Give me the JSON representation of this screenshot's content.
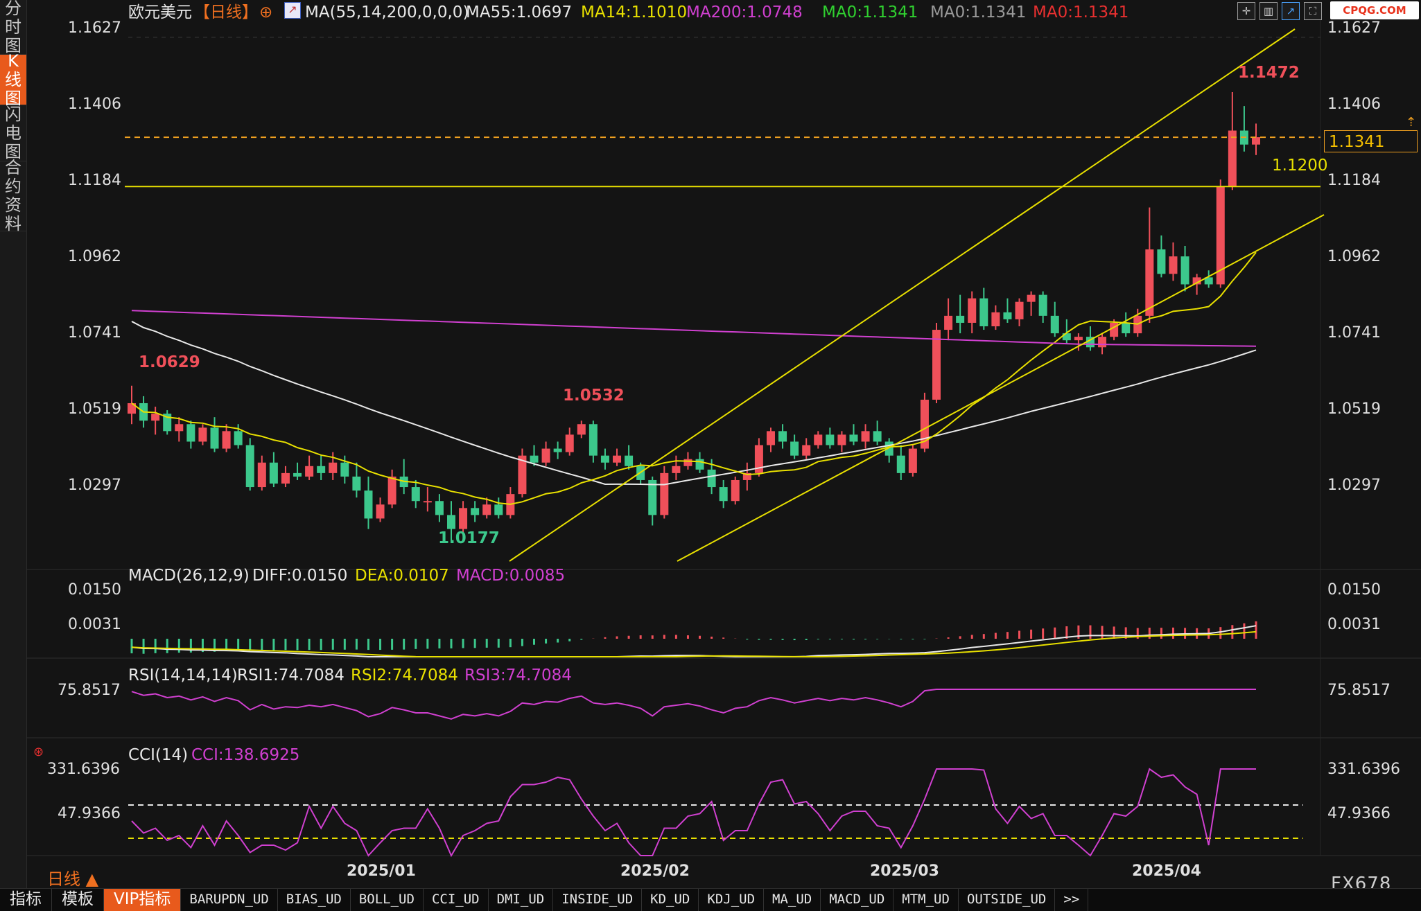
{
  "sidebar": [
    {
      "label": "分时图",
      "active": false
    },
    {
      "label": "K线图",
      "active": true
    },
    {
      "label": "闪电图",
      "active": false
    },
    {
      "label": "合约资料",
      "active": false
    }
  ],
  "header": {
    "symbol": "欧元美元",
    "period_tag": "【日线】",
    "ma_params": "MA(55,14,200,0,0,0)",
    "ma55": "MA55:1.0697",
    "ma14": "MA14:1.1010",
    "ma200": "MA200:1.0748",
    "ma0_a": "MA0:1.1341",
    "ma0_b": "MA0:1.1341",
    "ma0_c": "MA0:1.1341"
  },
  "toolbar_icons": [
    "crosshair-icon",
    "bars-icon",
    "chart-type-icon",
    "fullscreen-icon"
  ],
  "logo": "CPQG.COM",
  "price_flag": "1.1341",
  "level_label": "1.1200",
  "annotations": {
    "high": "1.1472",
    "left_high": "1.0629",
    "low": "1.0177",
    "mid_high": "1.0532"
  },
  "macd": {
    "params": "MACD(26,12,9)",
    "diff": "DIFF:0.0150",
    "dea": "DEA:0.0107",
    "macd": "MACD:0.0085"
  },
  "rsi": {
    "params": "RSI(14,14,14)",
    "rsi1": "RSI1:74.7084",
    "rsi2": "RSI2:74.7084",
    "rsi3": "RSI3:74.7084"
  },
  "cci": {
    "params": "CCI(14)",
    "cci": "CCI:138.6925"
  },
  "bottom_tabs": [
    "指标",
    "模板",
    "VIP指标",
    "BARUPDN_UD",
    "BIAS_UD",
    "BOLL_UD",
    "CCI_UD",
    "DMI_UD",
    "INSIDE_UD",
    "KD_UD",
    "KDJ_UD",
    "MA_UD",
    "MACD_UD",
    "MTM_UD",
    "OUTSIDE_UD",
    ">>"
  ],
  "active_bottom_tab": "VIP指标",
  "period_button": "日线 ▲",
  "watermark": "FX678",
  "colors": {
    "up": "#f0505a",
    "down": "#3cc88c",
    "ma14": "#e8e000",
    "ma55": "#e8e8e8",
    "ma200": "#d040d0",
    "accent": "#e85a1c"
  },
  "chart_data": {
    "type": "candlestick",
    "price_axis": {
      "ticks": [
        "1.1627",
        "1.1406",
        "1.1184",
        "1.0962",
        "1.0741",
        "1.0519",
        "1.0297"
      ],
      "range": [
        1.0128,
        1.1694
      ]
    },
    "macd_axis": {
      "ticks": [
        "0.0150",
        "0.0031"
      ]
    },
    "rsi_axis": {
      "ticks": [
        "75.8517"
      ]
    },
    "cci_axis": {
      "ticks": [
        "331.6396",
        "47.9366"
      ]
    },
    "x_labels": [
      "2025/01",
      "2025/02",
      "2025/03",
      "2025/04"
    ],
    "horizontal_line": 1.12,
    "current_price": 1.1341,
    "ohlc": [
      [
        1.055,
        1.063,
        1.052,
        1.058
      ],
      [
        1.058,
        1.06,
        1.051,
        1.053
      ],
      [
        1.053,
        1.057,
        1.049,
        1.055
      ],
      [
        1.055,
        1.056,
        1.049,
        1.05
      ],
      [
        1.05,
        1.054,
        1.047,
        1.052
      ],
      [
        1.052,
        1.053,
        1.045,
        1.047
      ],
      [
        1.047,
        1.052,
        1.046,
        1.051
      ],
      [
        1.051,
        1.054,
        1.044,
        1.045
      ],
      [
        1.045,
        1.052,
        1.044,
        1.05
      ],
      [
        1.05,
        1.052,
        1.045,
        1.046
      ],
      [
        1.046,
        1.048,
        1.033,
        1.034
      ],
      [
        1.034,
        1.043,
        1.033,
        1.041
      ],
      [
        1.041,
        1.044,
        1.034,
        1.035
      ],
      [
        1.035,
        1.04,
        1.034,
        1.038
      ],
      [
        1.038,
        1.041,
        1.036,
        1.037
      ],
      [
        1.037,
        1.043,
        1.036,
        1.04
      ],
      [
        1.04,
        1.043,
        1.036,
        1.038
      ],
      [
        1.038,
        1.044,
        1.036,
        1.041
      ],
      [
        1.041,
        1.043,
        1.035,
        1.037
      ],
      [
        1.037,
        1.041,
        1.031,
        1.033
      ],
      [
        1.033,
        1.037,
        1.022,
        1.025
      ],
      [
        1.025,
        1.031,
        1.024,
        1.029
      ],
      [
        1.029,
        1.039,
        1.028,
        1.037
      ],
      [
        1.037,
        1.042,
        1.032,
        1.034
      ],
      [
        1.034,
        1.036,
        1.028,
        1.03
      ],
      [
        1.03,
        1.034,
        1.027,
        1.03
      ],
      [
        1.03,
        1.032,
        1.024,
        1.026
      ],
      [
        1.026,
        1.03,
        1.018,
        1.022
      ],
      [
        1.022,
        1.03,
        1.021,
        1.028
      ],
      [
        1.028,
        1.03,
        1.024,
        1.026
      ],
      [
        1.026,
        1.031,
        1.025,
        1.029
      ],
      [
        1.029,
        1.031,
        1.025,
        1.026
      ],
      [
        1.026,
        1.034,
        1.025,
        1.032
      ],
      [
        1.032,
        1.045,
        1.031,
        1.043
      ],
      [
        1.043,
        1.046,
        1.04,
        1.041
      ],
      [
        1.041,
        1.047,
        1.04,
        1.045
      ],
      [
        1.045,
        1.047,
        1.042,
        1.044
      ],
      [
        1.044,
        1.051,
        1.043,
        1.049
      ],
      [
        1.049,
        1.053,
        1.048,
        1.052
      ],
      [
        1.052,
        1.053,
        1.041,
        1.043
      ],
      [
        1.043,
        1.045,
        1.039,
        1.041
      ],
      [
        1.041,
        1.045,
        1.04,
        1.043
      ],
      [
        1.043,
        1.046,
        1.039,
        1.04
      ],
      [
        1.04,
        1.041,
        1.035,
        1.036
      ],
      [
        1.036,
        1.037,
        1.023,
        1.026
      ],
      [
        1.026,
        1.04,
        1.025,
        1.038
      ],
      [
        1.038,
        1.043,
        1.036,
        1.04
      ],
      [
        1.04,
        1.044,
        1.039,
        1.042
      ],
      [
        1.042,
        1.044,
        1.038,
        1.039
      ],
      [
        1.039,
        1.042,
        1.032,
        1.034
      ],
      [
        1.034,
        1.036,
        1.028,
        1.03
      ],
      [
        1.03,
        1.037,
        1.029,
        1.036
      ],
      [
        1.036,
        1.041,
        1.033,
        1.038
      ],
      [
        1.038,
        1.048,
        1.037,
        1.046
      ],
      [
        1.046,
        1.051,
        1.044,
        1.05
      ],
      [
        1.05,
        1.052,
        1.045,
        1.047
      ],
      [
        1.047,
        1.049,
        1.042,
        1.043
      ],
      [
        1.043,
        1.048,
        1.042,
        1.046
      ],
      [
        1.046,
        1.05,
        1.045,
        1.049
      ],
      [
        1.049,
        1.051,
        1.045,
        1.046
      ],
      [
        1.046,
        1.05,
        1.044,
        1.049
      ],
      [
        1.049,
        1.052,
        1.046,
        1.047
      ],
      [
        1.047,
        1.052,
        1.045,
        1.05
      ],
      [
        1.05,
        1.053,
        1.046,
        1.047
      ],
      [
        1.047,
        1.048,
        1.041,
        1.043
      ],
      [
        1.043,
        1.046,
        1.036,
        1.038
      ],
      [
        1.038,
        1.046,
        1.037,
        1.045
      ],
      [
        1.045,
        1.061,
        1.044,
        1.059
      ],
      [
        1.059,
        1.081,
        1.058,
        1.079
      ],
      [
        1.079,
        1.088,
        1.076,
        1.083
      ],
      [
        1.083,
        1.089,
        1.078,
        1.081
      ],
      [
        1.081,
        1.09,
        1.078,
        1.088
      ],
      [
        1.088,
        1.091,
        1.079,
        1.08
      ],
      [
        1.08,
        1.086,
        1.079,
        1.084
      ],
      [
        1.084,
        1.088,
        1.081,
        1.082
      ],
      [
        1.082,
        1.088,
        1.08,
        1.087
      ],
      [
        1.087,
        1.09,
        1.083,
        1.089
      ],
      [
        1.089,
        1.09,
        1.081,
        1.083
      ],
      [
        1.083,
        1.087,
        1.077,
        1.078
      ],
      [
        1.078,
        1.082,
        1.075,
        1.076
      ],
      [
        1.076,
        1.078,
        1.073,
        1.077
      ],
      [
        1.077,
        1.08,
        1.073,
        1.074
      ],
      [
        1.074,
        1.078,
        1.072,
        1.077
      ],
      [
        1.077,
        1.082,
        1.076,
        1.081
      ],
      [
        1.081,
        1.084,
        1.077,
        1.078
      ],
      [
        1.078,
        1.085,
        1.077,
        1.083
      ],
      [
        1.083,
        1.114,
        1.081,
        1.102
      ],
      [
        1.102,
        1.106,
        1.094,
        1.095
      ],
      [
        1.095,
        1.104,
        1.093,
        1.1
      ],
      [
        1.1,
        1.103,
        1.09,
        1.092
      ],
      [
        1.092,
        1.095,
        1.089,
        1.094
      ],
      [
        1.094,
        1.096,
        1.091,
        1.092
      ],
      [
        1.092,
        1.122,
        1.091,
        1.12
      ],
      [
        1.12,
        1.147,
        1.119,
        1.136
      ],
      [
        1.136,
        1.143,
        1.13,
        1.132
      ],
      [
        1.132,
        1.138,
        1.129,
        1.1341
      ]
    ]
  }
}
